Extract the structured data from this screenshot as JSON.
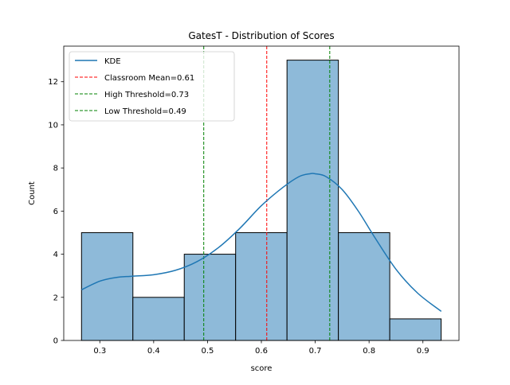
{
  "chart_data": {
    "type": "bar",
    "title": "GatesT - Distribution of Scores",
    "xlabel": "score",
    "ylabel": "Count",
    "xlim": [
      0.233,
      0.967
    ],
    "ylim": [
      0,
      13.65
    ],
    "xticks": [
      "0.3",
      "0.4",
      "0.5",
      "0.6",
      "0.7",
      "0.8",
      "0.9"
    ],
    "yticks": [
      "0",
      "2",
      "4",
      "6",
      "8",
      "10",
      "12"
    ],
    "bins": [
      {
        "x0": 0.266,
        "x1": 0.3614,
        "count": 5
      },
      {
        "x0": 0.3614,
        "x1": 0.4568,
        "count": 2
      },
      {
        "x0": 0.4568,
        "x1": 0.5522,
        "count": 4
      },
      {
        "x0": 0.5522,
        "x1": 0.6476,
        "count": 5
      },
      {
        "x0": 0.6476,
        "x1": 0.743,
        "count": 13
      },
      {
        "x0": 0.743,
        "x1": 0.8384,
        "count": 5
      },
      {
        "x0": 0.8384,
        "x1": 0.9338,
        "count": 1
      }
    ],
    "kde": {
      "name": "KDE",
      "x": [
        0.266,
        0.3,
        0.33,
        0.36,
        0.4,
        0.44,
        0.48,
        0.52,
        0.56,
        0.6,
        0.64,
        0.67,
        0.69,
        0.7,
        0.72,
        0.75,
        0.78,
        0.81,
        0.85,
        0.89,
        0.934
      ],
      "y": [
        2.35,
        2.75,
        2.92,
        2.98,
        3.05,
        3.25,
        3.65,
        4.3,
        5.2,
        6.25,
        7.1,
        7.6,
        7.73,
        7.73,
        7.6,
        7.0,
        6.0,
        4.8,
        3.3,
        2.2,
        1.35
      ]
    },
    "vlines": [
      {
        "label": "Classroom Mean=0.61",
        "x": 0.61,
        "color": "#ff0000"
      },
      {
        "label": "High Threshold=0.73",
        "x": 0.727,
        "color": "#008000"
      },
      {
        "label": "Low Threshold=0.49",
        "x": 0.493,
        "color": "#008000"
      }
    ],
    "colors": {
      "bar_fill": "#8ebad9",
      "bar_edge": "#000000",
      "kde": "#1f77b4"
    },
    "grid": false,
    "legend_position": "top-left",
    "legend": [
      "KDE",
      "Classroom Mean=0.61",
      "High Threshold=0.73",
      "Low Threshold=0.49"
    ]
  }
}
